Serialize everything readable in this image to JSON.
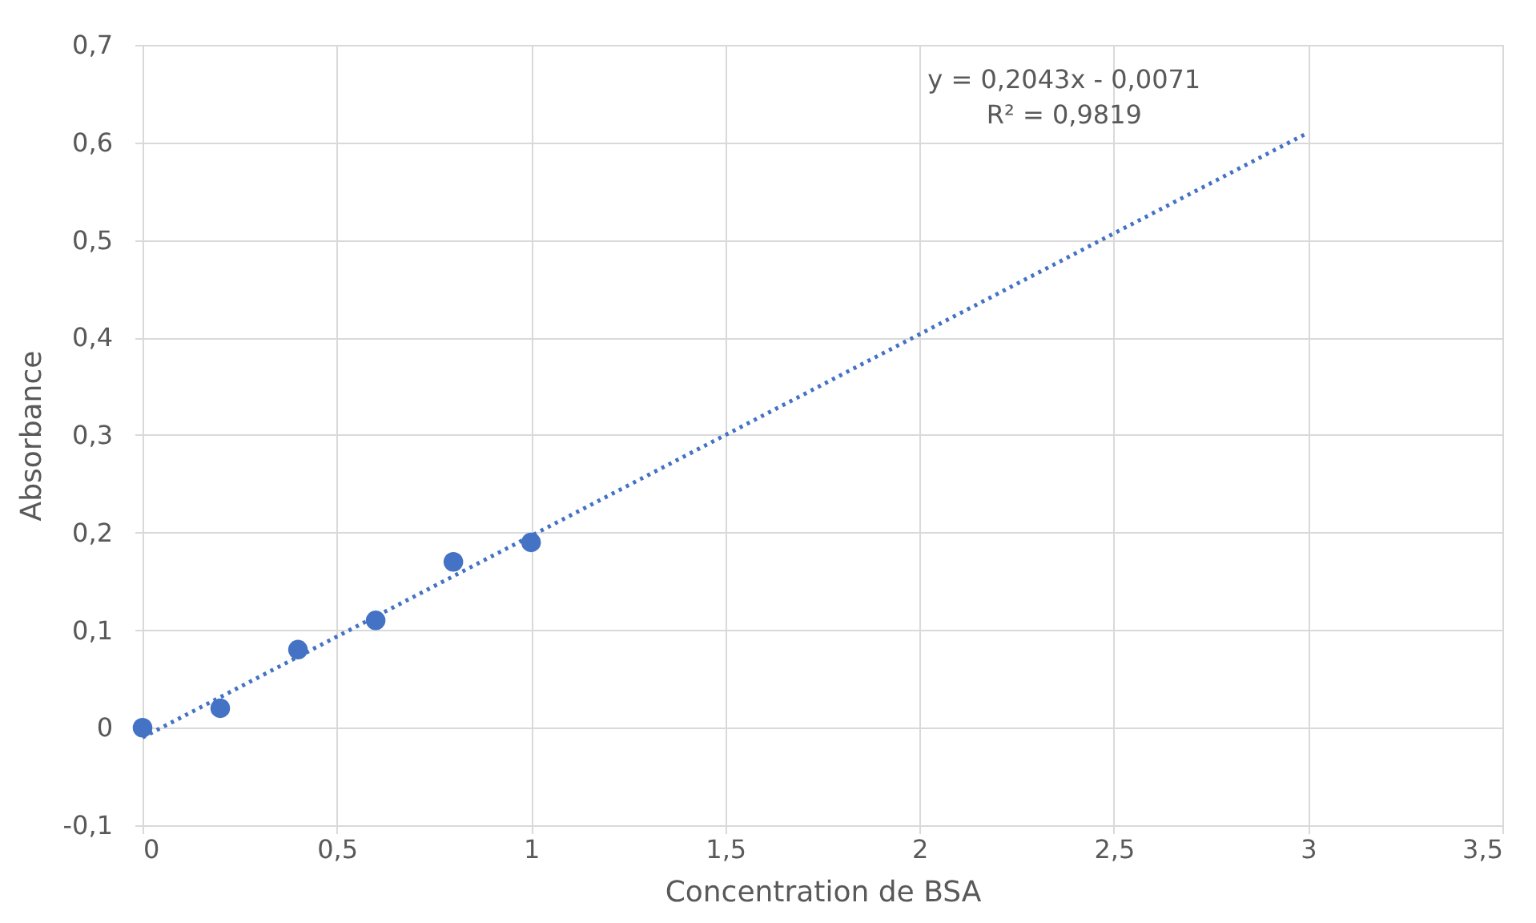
{
  "chart_data": {
    "type": "scatter",
    "xlabel": "Concentration de BSA",
    "ylabel": "Absorbance",
    "x": [
      0,
      0.2,
      0.4,
      0.6,
      0.8,
      1
    ],
    "series": [
      {
        "color": "#4472c4",
        "marker": "circle",
        "values": [
          0,
          0.02,
          0.08,
          0.11,
          0.17,
          0.19
        ]
      },
      {
        "type": "line",
        "color": "#4472c4",
        "line_style": "dotted",
        "marker": "none",
        "x": [
          0,
          3
        ],
        "values": [
          -0.01,
          0.61
        ]
      }
    ],
    "xlim": [
      0,
      3.5
    ],
    "ylim": [
      -0.1,
      0.7
    ],
    "xticks": [
      0,
      {
        "value": 0.5,
        "label": "0,5"
      },
      1,
      {
        "value": 1.5,
        "label": "1,5"
      },
      2,
      {
        "value": 2.5,
        "label": "2,5"
      },
      3,
      {
        "value": 3.5,
        "label": "3,5"
      }
    ],
    "yticks": [
      {
        "value": -0.1,
        "label": "-0,1"
      },
      0,
      {
        "value": 0.1,
        "label": "0,1"
      },
      {
        "value": 0.2,
        "label": "0,2"
      },
      {
        "value": 0.3,
        "label": "0,3"
      },
      {
        "value": 0.4,
        "label": "0,4"
      },
      {
        "value": 0.5,
        "label": "0,5"
      },
      {
        "value": 0.6,
        "label": "0,6"
      },
      {
        "value": 0.7,
        "label": "0,7"
      }
    ],
    "grid": true,
    "annotations": [
      "y = 0,2043x - 0,0071",
      "R² = 0,9819"
    ]
  }
}
